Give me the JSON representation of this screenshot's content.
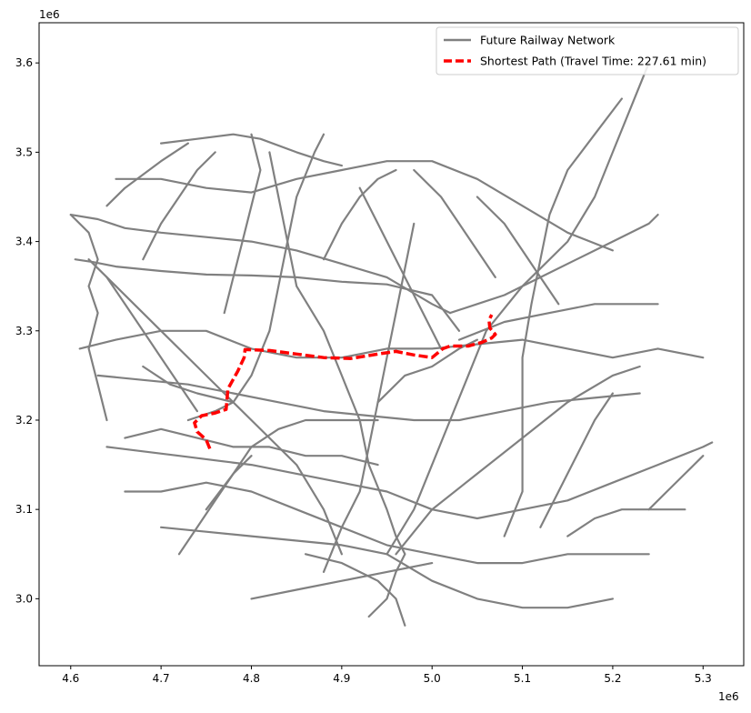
{
  "chart_data": {
    "type": "map",
    "x_offset_label": "1e6",
    "y_offset_label": "1e6",
    "xlim": [
      4.565,
      5.345
    ],
    "ylim": [
      2.925,
      3.645
    ],
    "x_ticks": [
      4.6,
      4.7,
      4.8,
      4.9,
      5.0,
      5.1,
      5.2,
      5.3
    ],
    "x_tick_labels": [
      "4.6",
      "4.7",
      "4.8",
      "4.9",
      "5.0",
      "5.1",
      "5.2",
      "5.3"
    ],
    "y_ticks": [
      3.0,
      3.1,
      3.2,
      3.3,
      3.4,
      3.5,
      3.6
    ],
    "y_tick_labels": [
      "3.0",
      "3.1",
      "3.2",
      "3.3",
      "3.4",
      "3.5",
      "3.6"
    ],
    "legend": {
      "placement": "top-right",
      "entries": [
        {
          "label": "Future Railway Network",
          "color": "#808080",
          "style": "solid"
        },
        {
          "label": "Shortest Path (Travel Time: 227.61 min)",
          "color": "#ff0000",
          "style": "dashed"
        }
      ]
    },
    "network_color": "#808080",
    "path_color": "#ff0000",
    "network_lines": [
      [
        [
          4.605,
          3.38
        ],
        [
          4.625,
          3.377
        ],
        [
          4.65,
          3.372
        ],
        [
          4.7,
          3.367
        ],
        [
          4.75,
          3.363
        ],
        [
          4.8,
          3.362
        ],
        [
          4.85,
          3.36
        ],
        [
          4.9,
          3.355
        ],
        [
          4.95,
          3.352
        ],
        [
          5.0,
          3.34
        ],
        [
          5.03,
          3.3
        ]
      ],
      [
        [
          4.6,
          3.43
        ],
        [
          4.63,
          3.425
        ],
        [
          4.66,
          3.415
        ],
        [
          4.7,
          3.41
        ],
        [
          4.75,
          3.405
        ],
        [
          4.8,
          3.4
        ],
        [
          4.85,
          3.39
        ],
        [
          4.9,
          3.375
        ],
        [
          4.95,
          3.36
        ],
        [
          5.0,
          3.33
        ],
        [
          5.02,
          3.32
        ]
      ],
      [
        [
          4.7,
          3.51
        ],
        [
          4.74,
          3.515
        ],
        [
          4.78,
          3.52
        ],
        [
          4.81,
          3.515
        ],
        [
          4.85,
          3.5
        ],
        [
          4.88,
          3.49
        ],
        [
          4.9,
          3.485
        ]
      ],
      [
        [
          4.65,
          3.47
        ],
        [
          4.7,
          3.47
        ],
        [
          4.75,
          3.46
        ],
        [
          4.8,
          3.455
        ],
        [
          4.85,
          3.47
        ],
        [
          4.9,
          3.48
        ],
        [
          4.95,
          3.49
        ],
        [
          5.0,
          3.49
        ],
        [
          5.05,
          3.47
        ],
        [
          5.1,
          3.44
        ],
        [
          5.15,
          3.41
        ],
        [
          5.2,
          3.39
        ]
      ],
      [
        [
          4.64,
          3.44
        ],
        [
          4.66,
          3.46
        ],
        [
          4.7,
          3.49
        ],
        [
          4.73,
          3.51
        ]
      ],
      [
        [
          4.61,
          3.28
        ],
        [
          4.65,
          3.29
        ],
        [
          4.7,
          3.3
        ],
        [
          4.75,
          3.3
        ],
        [
          4.8,
          3.28
        ],
        [
          4.85,
          3.27
        ],
        [
          4.9,
          3.27
        ],
        [
          4.95,
          3.28
        ],
        [
          5.0,
          3.28
        ],
        [
          5.05,
          3.285
        ],
        [
          5.1,
          3.29
        ],
        [
          5.15,
          3.28
        ],
        [
          5.2,
          3.27
        ],
        [
          5.25,
          3.28
        ],
        [
          5.3,
          3.27
        ]
      ],
      [
        [
          4.63,
          3.25
        ],
        [
          4.68,
          3.245
        ],
        [
          4.73,
          3.24
        ],
        [
          4.78,
          3.23
        ],
        [
          4.83,
          3.22
        ],
        [
          4.88,
          3.21
        ],
        [
          4.93,
          3.205
        ],
        [
          4.98,
          3.2
        ],
        [
          5.03,
          3.2
        ],
        [
          5.08,
          3.21
        ],
        [
          5.13,
          3.22
        ],
        [
          5.18,
          3.225
        ],
        [
          5.23,
          3.23
        ]
      ],
      [
        [
          4.64,
          3.17
        ],
        [
          4.68,
          3.165
        ],
        [
          4.72,
          3.16
        ],
        [
          4.76,
          3.155
        ],
        [
          4.8,
          3.15
        ],
        [
          4.85,
          3.14
        ],
        [
          4.9,
          3.13
        ],
        [
          4.95,
          3.12
        ],
        [
          5.0,
          3.1
        ],
        [
          5.05,
          3.09
        ],
        [
          5.1,
          3.1
        ],
        [
          5.15,
          3.11
        ],
        [
          5.2,
          3.13
        ],
        [
          5.25,
          3.15
        ],
        [
          5.3,
          3.17
        ],
        [
          5.31,
          3.175
        ]
      ],
      [
        [
          4.66,
          3.12
        ],
        [
          4.7,
          3.12
        ],
        [
          4.75,
          3.13
        ],
        [
          4.8,
          3.12
        ],
        [
          4.85,
          3.1
        ],
        [
          4.9,
          3.08
        ],
        [
          4.95,
          3.06
        ],
        [
          5.0,
          3.05
        ],
        [
          5.05,
          3.04
        ],
        [
          5.1,
          3.04
        ],
        [
          5.15,
          3.05
        ],
        [
          5.2,
          3.05
        ],
        [
          5.24,
          3.05
        ]
      ],
      [
        [
          4.7,
          3.08
        ],
        [
          4.75,
          3.075
        ],
        [
          4.8,
          3.07
        ],
        [
          4.85,
          3.065
        ],
        [
          4.9,
          3.06
        ],
        [
          4.95,
          3.05
        ],
        [
          5.0,
          3.02
        ],
        [
          5.05,
          3.0
        ],
        [
          5.1,
          2.99
        ],
        [
          5.15,
          2.99
        ],
        [
          5.2,
          3.0
        ]
      ],
      [
        [
          4.8,
          3.0
        ],
        [
          4.85,
          3.01
        ],
        [
          4.9,
          3.02
        ],
        [
          4.95,
          3.03
        ],
        [
          5.0,
          3.04
        ]
      ],
      [
        [
          4.93,
          2.98
        ],
        [
          4.95,
          3.0
        ],
        [
          4.96,
          3.03
        ],
        [
          4.97,
          3.05
        ],
        [
          4.96,
          3.07
        ],
        [
          4.95,
          3.1
        ],
        [
          4.93,
          3.15
        ],
        [
          4.92,
          3.2
        ],
        [
          4.9,
          3.25
        ],
        [
          4.88,
          3.3
        ],
        [
          4.85,
          3.35
        ],
        [
          4.84,
          3.4
        ],
        [
          4.83,
          3.45
        ],
        [
          4.82,
          3.5
        ]
      ],
      [
        [
          4.9,
          3.05
        ],
        [
          4.88,
          3.1
        ],
        [
          4.85,
          3.15
        ],
        [
          4.8,
          3.2
        ],
        [
          4.75,
          3.25
        ],
        [
          4.7,
          3.3
        ],
        [
          4.65,
          3.35
        ],
        [
          4.62,
          3.38
        ]
      ],
      [
        [
          4.95,
          3.05
        ],
        [
          4.98,
          3.1
        ],
        [
          5.0,
          3.15
        ],
        [
          5.02,
          3.2
        ],
        [
          5.04,
          3.25
        ],
        [
          5.06,
          3.3
        ],
        [
          5.1,
          3.35
        ],
        [
          5.15,
          3.4
        ],
        [
          5.18,
          3.45
        ],
        [
          5.2,
          3.5
        ],
        [
          5.22,
          3.55
        ],
        [
          5.24,
          3.6
        ]
      ],
      [
        [
          4.96,
          3.05
        ],
        [
          5.0,
          3.1
        ],
        [
          5.05,
          3.14
        ],
        [
          5.1,
          3.18
        ],
        [
          5.15,
          3.22
        ],
        [
          5.2,
          3.25
        ],
        [
          5.23,
          3.26
        ]
      ],
      [
        [
          5.02,
          3.32
        ],
        [
          5.05,
          3.33
        ],
        [
          5.08,
          3.34
        ],
        [
          5.12,
          3.36
        ],
        [
          5.16,
          3.38
        ],
        [
          5.2,
          3.4
        ],
        [
          5.24,
          3.42
        ],
        [
          5.25,
          3.43
        ]
      ],
      [
        [
          5.03,
          3.29
        ],
        [
          5.08,
          3.31
        ],
        [
          5.13,
          3.32
        ],
        [
          5.18,
          3.33
        ],
        [
          5.22,
          3.33
        ],
        [
          5.25,
          3.33
        ]
      ],
      [
        [
          4.94,
          3.22
        ],
        [
          4.97,
          3.25
        ],
        [
          5.0,
          3.26
        ],
        [
          5.03,
          3.28
        ],
        [
          5.05,
          3.29
        ]
      ],
      [
        [
          4.73,
          3.2
        ],
        [
          4.76,
          3.21
        ],
        [
          4.78,
          3.22
        ],
        [
          4.8,
          3.25
        ],
        [
          4.82,
          3.3
        ],
        [
          4.83,
          3.35
        ],
        [
          4.84,
          3.4
        ],
        [
          4.85,
          3.45
        ],
        [
          4.87,
          3.5
        ],
        [
          4.88,
          3.52
        ]
      ],
      [
        [
          4.75,
          3.1
        ],
        [
          4.78,
          3.14
        ],
        [
          4.8,
          3.17
        ],
        [
          4.83,
          3.19
        ],
        [
          4.86,
          3.2
        ],
        [
          4.9,
          3.2
        ],
        [
          4.94,
          3.2
        ]
      ],
      [
        [
          5.08,
          3.07
        ],
        [
          5.1,
          3.12
        ],
        [
          5.1,
          3.17
        ],
        [
          5.1,
          3.22
        ],
        [
          5.1,
          3.27
        ],
        [
          5.11,
          3.33
        ],
        [
          5.12,
          3.38
        ],
        [
          5.13,
          3.43
        ],
        [
          5.15,
          3.48
        ],
        [
          5.18,
          3.52
        ],
        [
          5.21,
          3.56
        ]
      ],
      [
        [
          4.6,
          3.43
        ],
        [
          4.62,
          3.41
        ],
        [
          4.63,
          3.38
        ],
        [
          4.62,
          3.35
        ],
        [
          4.63,
          3.32
        ],
        [
          4.62,
          3.28
        ],
        [
          4.63,
          3.24
        ],
        [
          4.64,
          3.2
        ]
      ],
      [
        [
          4.68,
          3.38
        ],
        [
          4.7,
          3.42
        ],
        [
          4.72,
          3.45
        ],
        [
          4.74,
          3.48
        ],
        [
          4.76,
          3.5
        ]
      ],
      [
        [
          4.92,
          3.46
        ],
        [
          4.94,
          3.42
        ],
        [
          4.96,
          3.38
        ],
        [
          4.98,
          3.34
        ],
        [
          5.0,
          3.3
        ],
        [
          5.01,
          3.28
        ]
      ],
      [
        [
          4.98,
          3.48
        ],
        [
          5.01,
          3.45
        ],
        [
          5.03,
          3.42
        ],
        [
          5.05,
          3.39
        ],
        [
          5.07,
          3.36
        ]
      ],
      [
        [
          4.66,
          3.18
        ],
        [
          4.7,
          3.19
        ],
        [
          4.74,
          3.18
        ],
        [
          4.78,
          3.17
        ],
        [
          4.82,
          3.17
        ],
        [
          4.86,
          3.16
        ],
        [
          4.9,
          3.16
        ],
        [
          4.94,
          3.15
        ]
      ],
      [
        [
          4.72,
          3.05
        ],
        [
          4.74,
          3.08
        ],
        [
          4.76,
          3.11
        ],
        [
          4.78,
          3.14
        ],
        [
          4.8,
          3.16
        ]
      ],
      [
        [
          5.12,
          3.08
        ],
        [
          5.14,
          3.12
        ],
        [
          5.16,
          3.16
        ],
        [
          5.18,
          3.2
        ],
        [
          5.2,
          3.23
        ]
      ],
      [
        [
          4.88,
          3.03
        ],
        [
          4.9,
          3.08
        ],
        [
          4.92,
          3.12
        ],
        [
          4.93,
          3.17
        ],
        [
          4.94,
          3.22
        ],
        [
          4.95,
          3.27
        ],
        [
          4.96,
          3.32
        ],
        [
          4.97,
          3.37
        ],
        [
          4.98,
          3.42
        ]
      ],
      [
        [
          5.24,
          3.1
        ],
        [
          5.26,
          3.12
        ],
        [
          5.28,
          3.14
        ],
        [
          5.3,
          3.16
        ]
      ],
      [
        [
          4.64,
          3.36
        ],
        [
          4.66,
          3.33
        ],
        [
          4.68,
          3.3
        ],
        [
          4.7,
          3.27
        ],
        [
          4.72,
          3.24
        ],
        [
          4.74,
          3.21
        ]
      ],
      [
        [
          4.8,
          3.52
        ],
        [
          4.81,
          3.48
        ],
        [
          4.8,
          3.44
        ],
        [
          4.79,
          3.4
        ],
        [
          4.78,
          3.36
        ],
        [
          4.77,
          3.32
        ]
      ],
      [
        [
          5.15,
          3.07
        ],
        [
          5.18,
          3.09
        ],
        [
          5.21,
          3.1
        ],
        [
          5.24,
          3.1
        ],
        [
          5.28,
          3.1
        ]
      ],
      [
        [
          4.86,
          3.05
        ],
        [
          4.9,
          3.04
        ],
        [
          4.94,
          3.02
        ],
        [
          4.96,
          3.0
        ],
        [
          4.97,
          2.97
        ]
      ],
      [
        [
          4.88,
          3.38
        ],
        [
          4.9,
          3.42
        ],
        [
          4.92,
          3.45
        ],
        [
          4.94,
          3.47
        ],
        [
          4.96,
          3.48
        ]
      ],
      [
        [
          5.05,
          3.45
        ],
        [
          5.08,
          3.42
        ],
        [
          5.1,
          3.39
        ],
        [
          5.12,
          3.36
        ],
        [
          5.14,
          3.33
        ]
      ],
      [
        [
          4.68,
          3.26
        ],
        [
          4.71,
          3.24
        ],
        [
          4.74,
          3.23
        ],
        [
          4.78,
          3.22
        ]
      ]
    ],
    "shortest_path": [
      [
        4.754,
        3.168
      ],
      [
        4.75,
        3.178
      ],
      [
        4.74,
        3.187
      ],
      [
        4.737,
        3.197
      ],
      [
        4.745,
        3.205
      ],
      [
        4.76,
        3.208
      ],
      [
        4.772,
        3.212
      ],
      [
        4.774,
        3.235
      ],
      [
        4.785,
        3.255
      ],
      [
        4.792,
        3.27
      ],
      [
        4.793,
        3.279
      ],
      [
        4.82,
        3.278
      ],
      [
        4.85,
        3.274
      ],
      [
        4.88,
        3.27
      ],
      [
        4.91,
        3.269
      ],
      [
        4.94,
        3.274
      ],
      [
        4.96,
        3.277
      ],
      [
        4.98,
        3.273
      ],
      [
        5.0,
        3.27
      ],
      [
        5.012,
        3.28
      ],
      [
        5.02,
        3.283
      ],
      [
        5.04,
        3.283
      ],
      [
        5.055,
        3.287
      ],
      [
        5.066,
        3.292
      ],
      [
        5.07,
        3.296
      ],
      [
        5.064,
        3.303
      ],
      [
        5.063,
        3.312
      ],
      [
        5.066,
        3.318
      ]
    ]
  }
}
